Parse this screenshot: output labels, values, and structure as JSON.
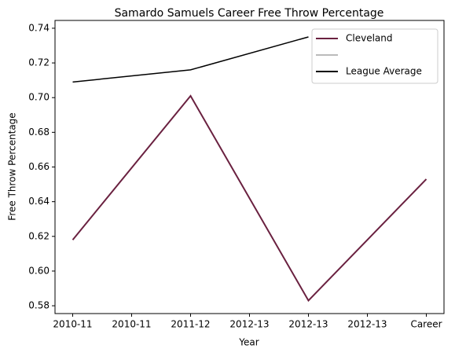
{
  "chart_data": {
    "type": "line",
    "title": "Samardo Samuels Career Free Throw Percentage",
    "x_label": "Year",
    "y_label": "Free Throw Percentage",
    "xlim": [
      -0.3,
      6.3
    ],
    "xticks": [
      {
        "value": 0,
        "label": "2010-11"
      },
      {
        "value": 1,
        "label": "2010-11"
      },
      {
        "value": 2,
        "label": "2011-12"
      },
      {
        "value": 3,
        "label": "2012-13"
      },
      {
        "value": 4,
        "label": "2012-13"
      },
      {
        "value": 5,
        "label": "2012-13"
      },
      {
        "value": 6,
        "label": "Career"
      }
    ],
    "ylim": [
      0.5755,
      0.7445
    ],
    "yticks": [
      0.58,
      {
        "value": 0.6,
        "label": "0.60"
      },
      0.62,
      0.64,
      0.66,
      0.68,
      {
        "value": 0.7,
        "label": "0.70"
      },
      0.72,
      0.74
    ],
    "legend": "upper right",
    "series": [
      {
        "name": "Cleveland",
        "color": "#6a2140",
        "x": [
          0,
          2,
          4,
          6
        ],
        "values": [
          0.618,
          0.701,
          0.583,
          0.653
        ]
      },
      {
        "name": null,
        "color": "#bbbbbb",
        "x": [],
        "values": []
      },
      {
        "name": "League Average",
        "color": "#000000",
        "x": [
          0,
          2,
          4
        ],
        "values": [
          0.709,
          0.716,
          0.735
        ]
      }
    ]
  }
}
